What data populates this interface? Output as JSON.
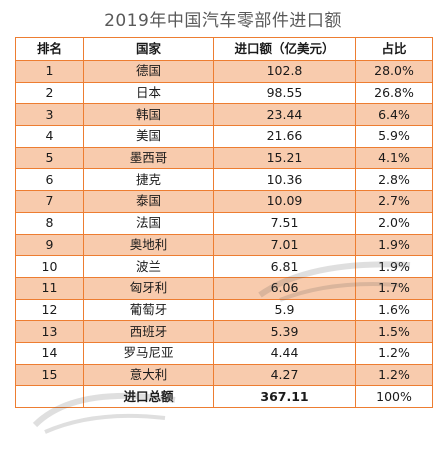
{
  "title": "2019年中国汽车零部件进口额",
  "table": {
    "headers": [
      "排名",
      "国家",
      "进口额（亿美元）",
      "占比"
    ],
    "rows": [
      {
        "rank": "1",
        "country": "德国",
        "value": "102.8",
        "share": "28.0%"
      },
      {
        "rank": "2",
        "country": "日本",
        "value": "98.55",
        "share": "26.8%"
      },
      {
        "rank": "3",
        "country": "韩国",
        "value": "23.44",
        "share": "6.4%"
      },
      {
        "rank": "4",
        "country": "美国",
        "value": "21.66",
        "share": "5.9%"
      },
      {
        "rank": "5",
        "country": "墨西哥",
        "value": "15.21",
        "share": "4.1%"
      },
      {
        "rank": "6",
        "country": "捷克",
        "value": "10.36",
        "share": "2.8%"
      },
      {
        "rank": "7",
        "country": "泰国",
        "value": "10.09",
        "share": "2.7%"
      },
      {
        "rank": "8",
        "country": "法国",
        "value": "7.51",
        "share": "2.0%"
      },
      {
        "rank": "9",
        "country": "奥地利",
        "value": "7.01",
        "share": "1.9%"
      },
      {
        "rank": "10",
        "country": "波兰",
        "value": "6.81",
        "share": "1.9%"
      },
      {
        "rank": "11",
        "country": "匈牙利",
        "value": "6.06",
        "share": "1.7%"
      },
      {
        "rank": "12",
        "country": "葡萄牙",
        "value": "5.9",
        "share": "1.6%"
      },
      {
        "rank": "13",
        "country": "西班牙",
        "value": "5.39",
        "share": "1.5%"
      },
      {
        "rank": "14",
        "country": "罗马尼亚",
        "value": "4.44",
        "share": "1.2%"
      },
      {
        "rank": "15",
        "country": "意大利",
        "value": "4.27",
        "share": "1.2%"
      }
    ],
    "total": {
      "label": "进口总额",
      "value": "367.11",
      "share": "100%"
    }
  },
  "colors": {
    "border": "#ed7d31",
    "stripe": "#f8cbad",
    "title": "#595959"
  }
}
